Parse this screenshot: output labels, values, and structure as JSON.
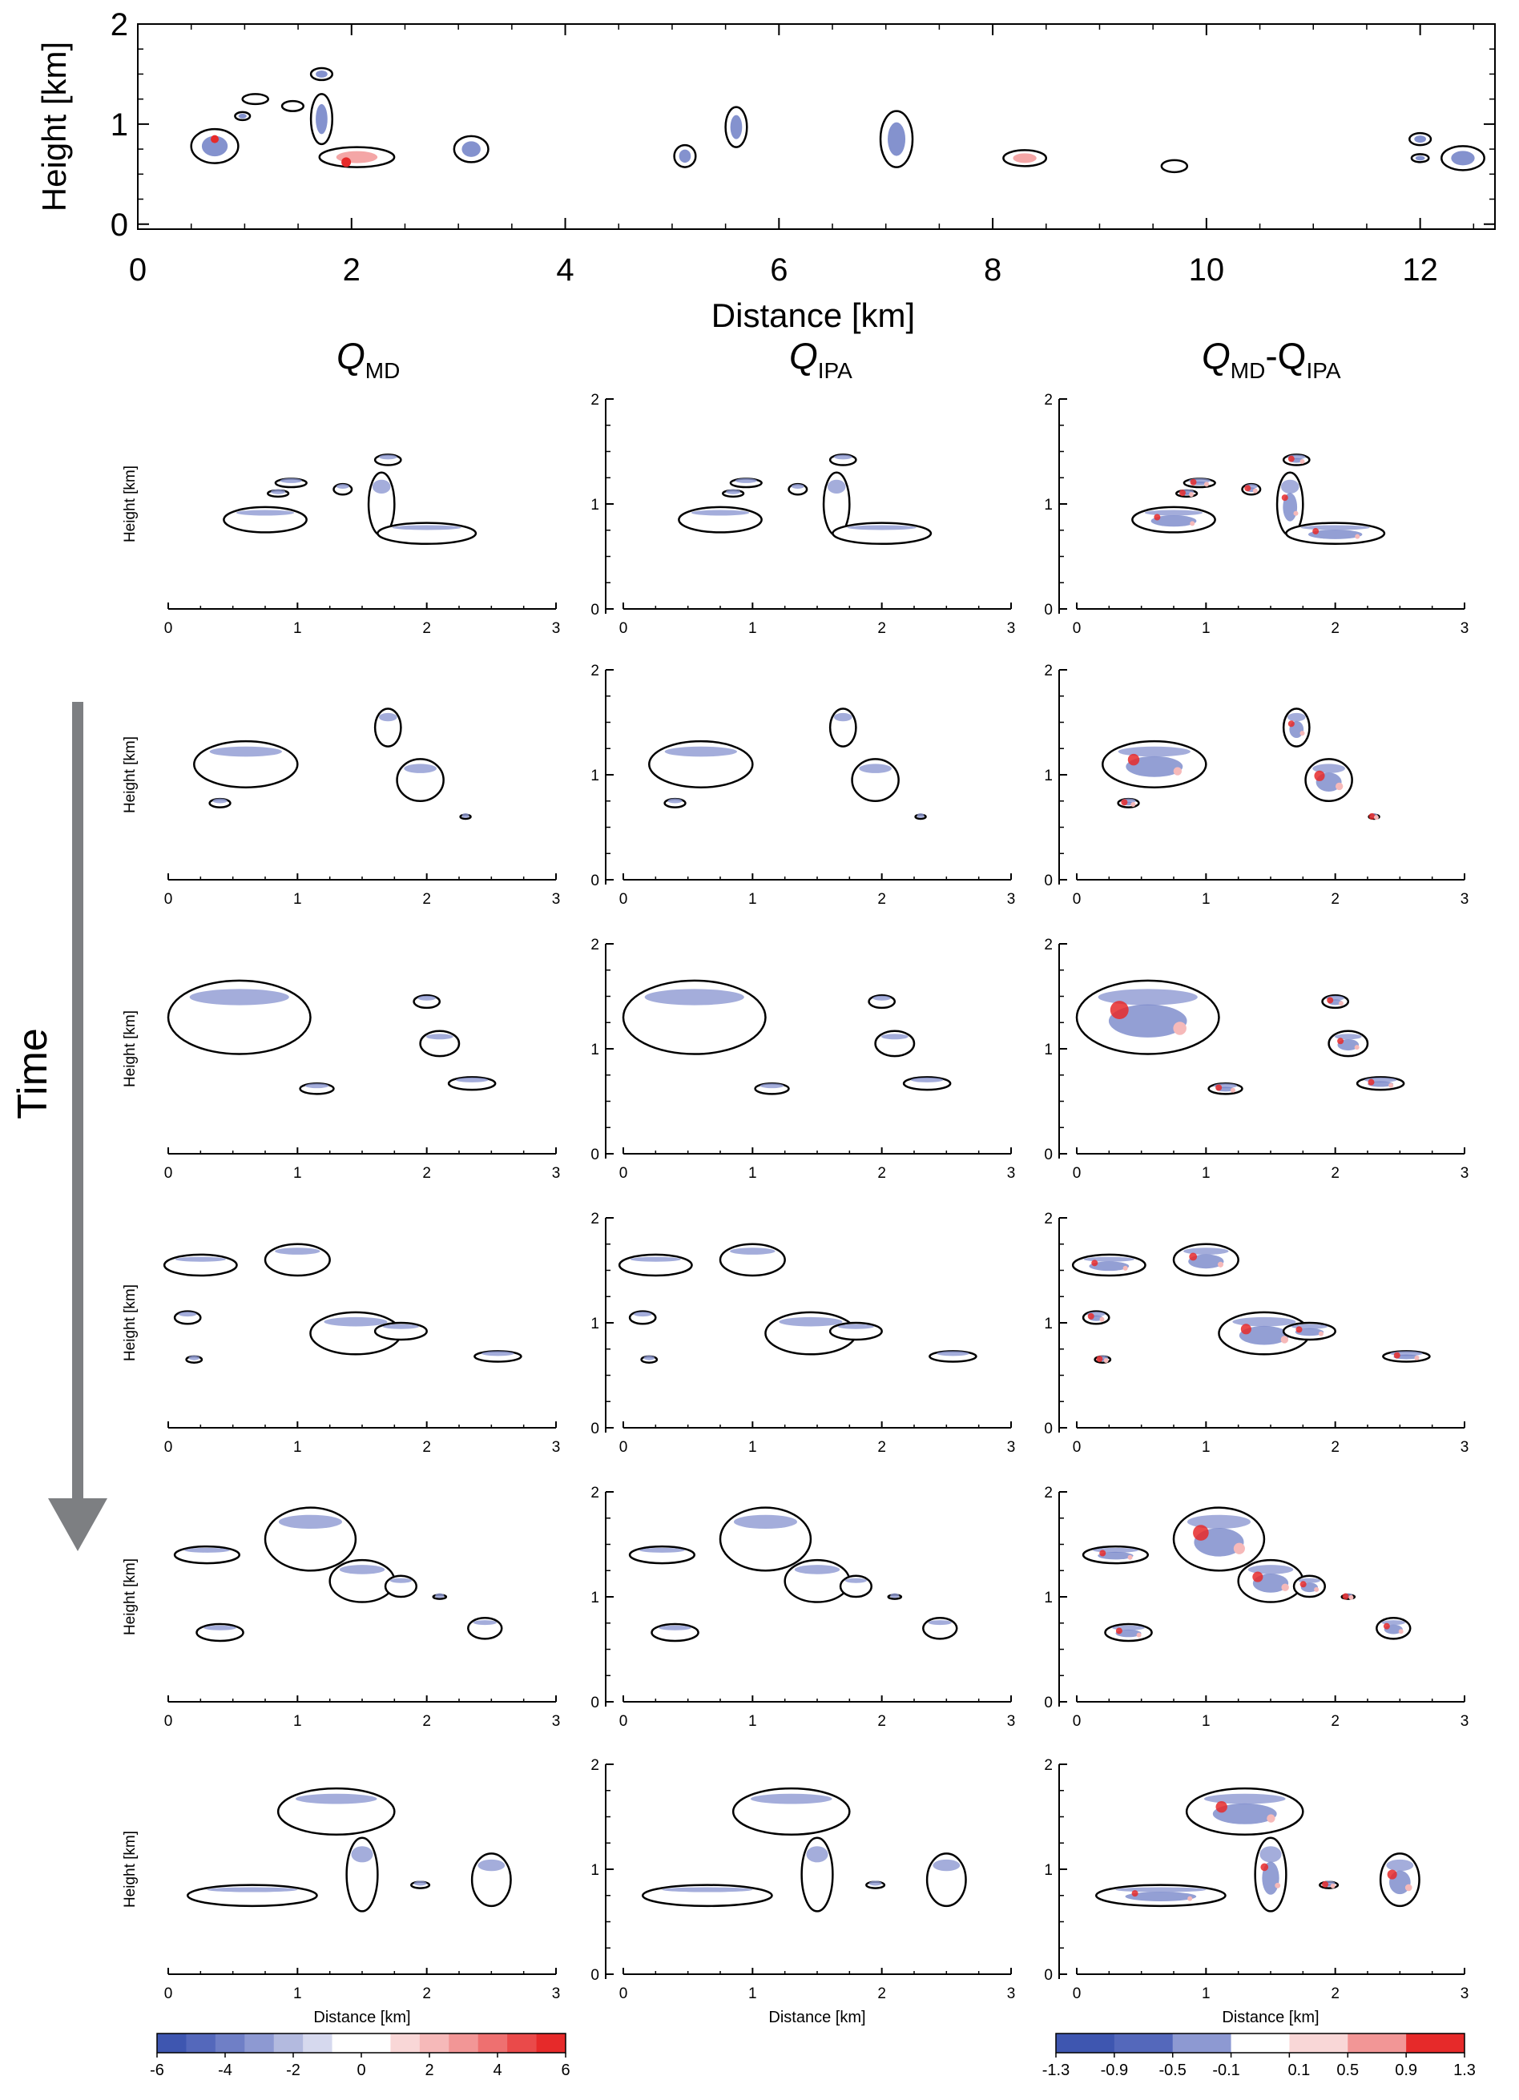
{
  "figure": {
    "time_label": "Time",
    "arrow_color": "#7d7f82"
  },
  "overview": {
    "xlabel": "Distance [km]",
    "ylabel": "Height [km]",
    "xticks": [
      "0",
      "2",
      "4",
      "6",
      "8",
      "10",
      "12"
    ],
    "yticks": [
      "0",
      "1",
      "2"
    ]
  },
  "column_titles": [
    {
      "main": "Q",
      "sub": "MD"
    },
    {
      "main": "Q",
      "sub": "IPA"
    },
    {
      "main": "Q",
      "sub": "MD",
      "minus": "-Q",
      "sub2": "IPA"
    }
  ],
  "panels": {
    "ylabel": "Height [km]",
    "xlabel": "Distance [km]",
    "xticks": [
      "0",
      "1",
      "2",
      "3"
    ],
    "yticks": [
      "0",
      "1",
      "2"
    ]
  },
  "colorbars": [
    {
      "labels": [
        "-6",
        "-4",
        "-2",
        "0",
        "2",
        "4",
        "6"
      ]
    },
    {
      "labels": [
        "-1.3",
        "-0.9",
        "-0.5",
        "-0.1",
        "0.1",
        "0.5",
        "0.9",
        "1.3"
      ]
    }
  ],
  "colors": {
    "scale": [
      "#3e56b0",
      "#5468bb",
      "#6f7fc6",
      "#8d99d2",
      "#b3badf",
      "#d6d9ee",
      "#ffffff",
      "#ffffff",
      "#f9d7d7",
      "#f6b9b9",
      "#f29696",
      "#ee7070",
      "#ea4a4a",
      "#e62a2a"
    ],
    "diff_scale": [
      "#3e56b0",
      "#5468bb",
      "#8d99d2",
      "#ffffff",
      "#f9d7d7",
      "#f29696",
      "#e62a2a"
    ],
    "contour": "#000000"
  },
  "chart_data": [
    {
      "type": "contour",
      "panel": "overview",
      "xlim": [
        0,
        12.7
      ],
      "ylim": [
        0,
        2
      ],
      "xlabel": "Distance [km]",
      "ylabel": "Height [km]",
      "clouds_x_center_km": [
        0.7,
        0.95,
        1.5,
        1.7,
        2.0,
        3.1,
        5.1,
        5.6,
        7.1,
        8.3,
        9.7,
        12.0,
        12.4
      ]
    },
    {
      "type": "contour",
      "panel": "time-series",
      "rows": 6,
      "columns": [
        "QMD",
        "QIPA",
        "QMD-QIPA"
      ],
      "xlim": [
        0,
        3
      ],
      "ylim": [
        0,
        2
      ],
      "xlabel": "Distance [km]",
      "ylabel": "Height [km]",
      "colorbar_QMD_QIPA": {
        "min": -6,
        "max": 6,
        "levels": 14
      },
      "colorbar_diff": {
        "levels": [
          -1.3,
          -0.9,
          -0.5,
          -0.1,
          0.1,
          0.5,
          0.9,
          1.3
        ]
      }
    }
  ]
}
